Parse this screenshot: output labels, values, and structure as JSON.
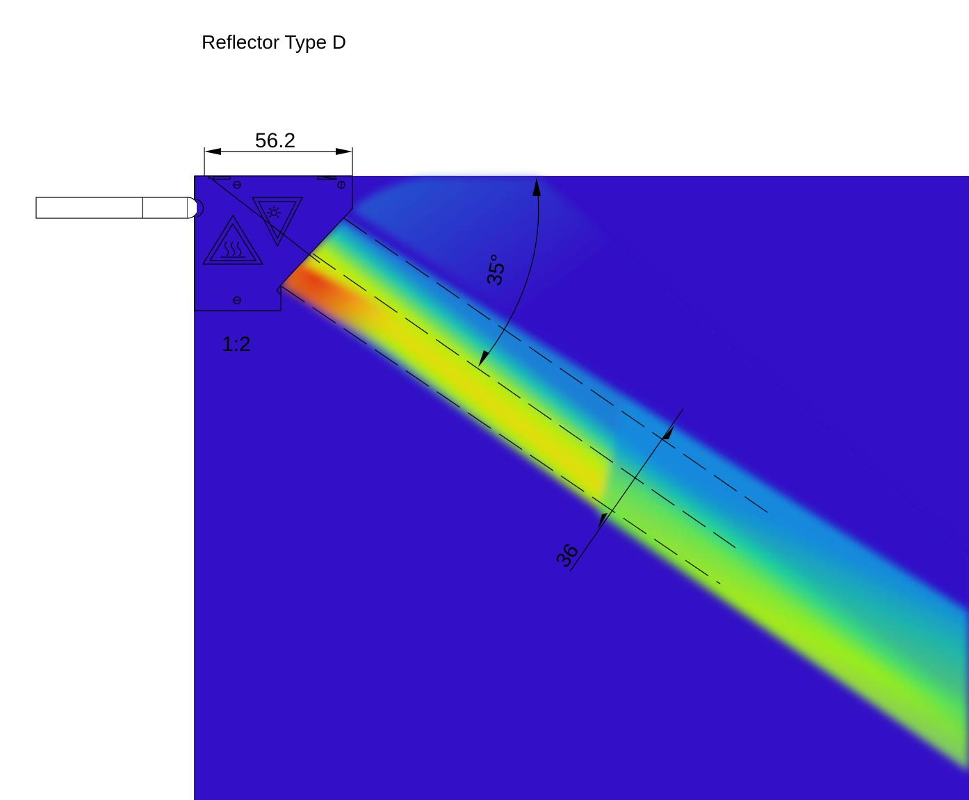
{
  "title": "Reflector Type D",
  "dimensions": {
    "width_label": "56.2",
    "angle_label": "35°",
    "beam_width_label": "36",
    "scale_label": "1:2"
  },
  "colors": {
    "background_field": "#3310c6",
    "beam_core": "#e23c10",
    "beam_mid": "#8cf000",
    "beam_edge": "#00b4d8",
    "line": "#000000"
  },
  "icons": [
    "hot-surface-warning-icon",
    "laser-warning-icon",
    "screw-icon"
  ]
}
